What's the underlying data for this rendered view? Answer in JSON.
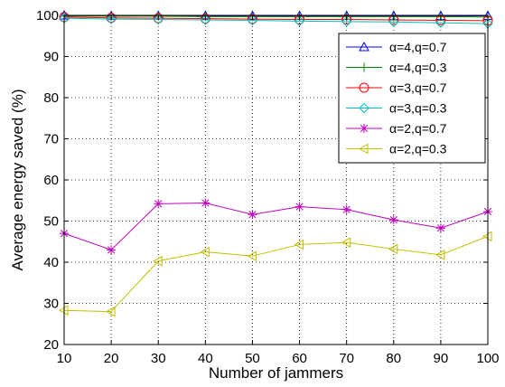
{
  "chart_data": {
    "type": "line",
    "xlabel": "Number of jammers",
    "ylabel": "Average energy saved (%)",
    "x": [
      10,
      20,
      30,
      40,
      50,
      60,
      70,
      80,
      90,
      100
    ],
    "xlim": [
      10,
      100
    ],
    "ylim": [
      20,
      100
    ],
    "xticks": [
      10,
      20,
      30,
      40,
      50,
      60,
      70,
      80,
      90,
      100
    ],
    "yticks": [
      20,
      30,
      40,
      50,
      60,
      70,
      80,
      90,
      100
    ],
    "grid": true,
    "legend_position": "top-right",
    "series": [
      {
        "name": "α=4,q=0.7",
        "color": "#0000ff",
        "marker": "triangle-up",
        "values": [
          100,
          99.9,
          99.9,
          99.9,
          99.9,
          99.9,
          99.9,
          99.9,
          99.9,
          99.9
        ]
      },
      {
        "name": "α=4,q=0.3",
        "color": "#008000",
        "marker": "plus",
        "values": [
          99.8,
          99.8,
          99.8,
          99.7,
          99.7,
          99.7,
          99.7,
          99.7,
          99.7,
          99.6
        ]
      },
      {
        "name": "α=3,q=0.7",
        "color": "#ff0000",
        "marker": "circle",
        "values": [
          99.6,
          99.4,
          99.3,
          99.2,
          99.1,
          99.0,
          99.0,
          98.9,
          98.8,
          98.7
        ]
      },
      {
        "name": "α=3,q=0.3",
        "color": "#00bfbf",
        "marker": "diamond",
        "values": [
          99.3,
          99.1,
          99.0,
          98.9,
          98.8,
          98.6,
          98.5,
          98.4,
          98.2,
          98.0
        ]
      },
      {
        "name": "α=2,q=0.7",
        "color": "#bf00bf",
        "marker": "star",
        "values": [
          47,
          43,
          54.2,
          54.4,
          51.6,
          53.5,
          52.8,
          50.3,
          48.3,
          52.3
        ]
      },
      {
        "name": "α=2,q=0.3",
        "color": "#bfbf00",
        "marker": "triangle-left",
        "values": [
          28.3,
          28,
          40.3,
          42.5,
          41.5,
          44.3,
          44.8,
          43.2,
          41.8,
          46.3
        ]
      }
    ]
  }
}
